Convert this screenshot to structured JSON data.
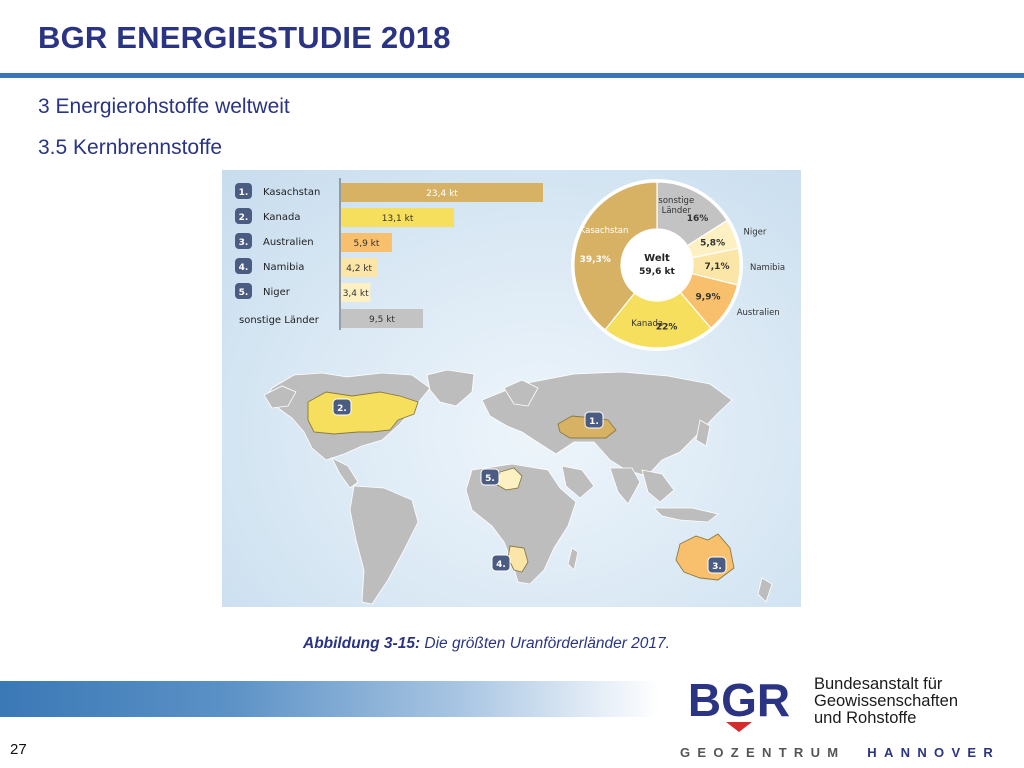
{
  "header": {
    "title": "BGR ENERGIESTUDIE 2018",
    "section": "3 Energierohstoffe weltweit",
    "subsection": "3.5 Kernbrennstoffe"
  },
  "caption": {
    "label": "Abbildung 3-15:",
    "text": " Die größten Uranförderländer 2017."
  },
  "footer": {
    "page_number": "27",
    "logo_text": "BGR",
    "institution_line1": "Bundesanstalt für",
    "institution_line2": "Geowissenschaften",
    "institution_line3": "und Rohstoffe",
    "tagline_part1": "GEOZENTRUM",
    "tagline_part2": "HANNOVER"
  },
  "colors": {
    "title_blue": "#2a3482",
    "accent_blue": "#3b77b8",
    "kasachstan": "#d7b265",
    "kanada": "#f6df5c",
    "australien": "#f8c06c",
    "namibia": "#fbe6a8",
    "niger": "#fdf0c2",
    "sonstige": "#c3c3c3",
    "map_land": "#bdbdbd",
    "badge": "#4b5c82"
  },
  "chart_data": [
    {
      "type": "bar",
      "orientation": "horizontal",
      "unit": "kt",
      "categories": [
        "Kasachstan",
        "Kanada",
        "Australien",
        "Namibia",
        "Niger",
        "sonstige Länder"
      ],
      "ranks": [
        "1.",
        "2.",
        "3.",
        "4.",
        "5.",
        ""
      ],
      "values": [
        23.4,
        13.1,
        5.9,
        4.2,
        3.4,
        9.5
      ],
      "value_labels": [
        "23,4 kt",
        "13,1 kt",
        "5,9 kt",
        "4,2 kt",
        "3,4 kt",
        "9,5 kt"
      ],
      "xlim": [
        0,
        23.4
      ]
    },
    {
      "type": "pie",
      "donut": true,
      "center_title": "Welt",
      "center_value": "59,6 kt",
      "categories": [
        "sonstige Länder",
        "Niger",
        "Namibia",
        "Australien",
        "Kanada",
        "Kasachstan"
      ],
      "category_labels": [
        "sonstige\nLänder",
        "Niger",
        "Namibia",
        "Australien",
        "Kanada",
        "Kasachstan"
      ],
      "values": [
        16,
        5.8,
        7.1,
        9.9,
        22,
        39.3
      ],
      "value_labels": [
        "16%",
        "5,8%",
        "7,1%",
        "9,9%",
        "22%",
        "39,3%"
      ]
    },
    {
      "type": "map",
      "title": "",
      "highlighted": [
        {
          "country": "Kasachstan",
          "rank": "1."
        },
        {
          "country": "Kanada",
          "rank": "2."
        },
        {
          "country": "Australien",
          "rank": "3."
        },
        {
          "country": "Namibia",
          "rank": "4."
        },
        {
          "country": "Niger",
          "rank": "5."
        }
      ]
    }
  ]
}
